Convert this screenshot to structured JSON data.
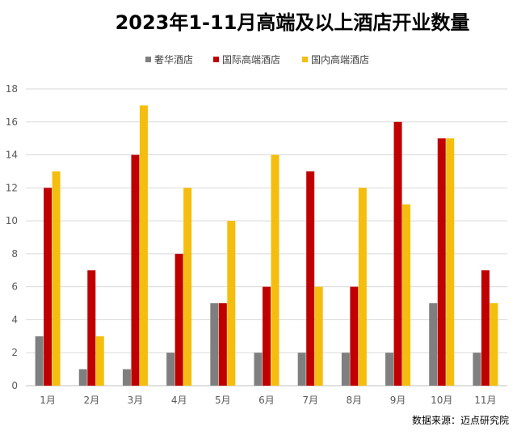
{
  "chart_data": {
    "type": "bar",
    "title": "2023年1-11月高端及以上酒店开业数量",
    "source": "数据来源：迈点研究院",
    "categories": [
      "1月",
      "2月",
      "3月",
      "4月",
      "5月",
      "6月",
      "7月",
      "8月",
      "9月",
      "10月",
      "11月"
    ],
    "series": [
      {
        "name": "奢华酒店",
        "color": "#7f7f7f",
        "values": [
          3,
          1,
          1,
          2,
          5,
          2,
          2,
          2,
          2,
          5,
          2
        ]
      },
      {
        "name": "国际高端酒店",
        "color": "#c00000",
        "values": [
          12,
          7,
          14,
          8,
          5,
          6,
          13,
          6,
          16,
          15,
          7
        ]
      },
      {
        "name": "国内高端酒店",
        "color": "#f5be0e",
        "values": [
          13,
          3,
          17,
          12,
          10,
          14,
          6,
          12,
          11,
          15,
          5
        ]
      }
    ],
    "ylim": [
      0,
      18
    ],
    "yticks": [
      0,
      2,
      4,
      6,
      8,
      10,
      12,
      14,
      16,
      18
    ],
    "grid": true,
    "legend_position": "top"
  }
}
